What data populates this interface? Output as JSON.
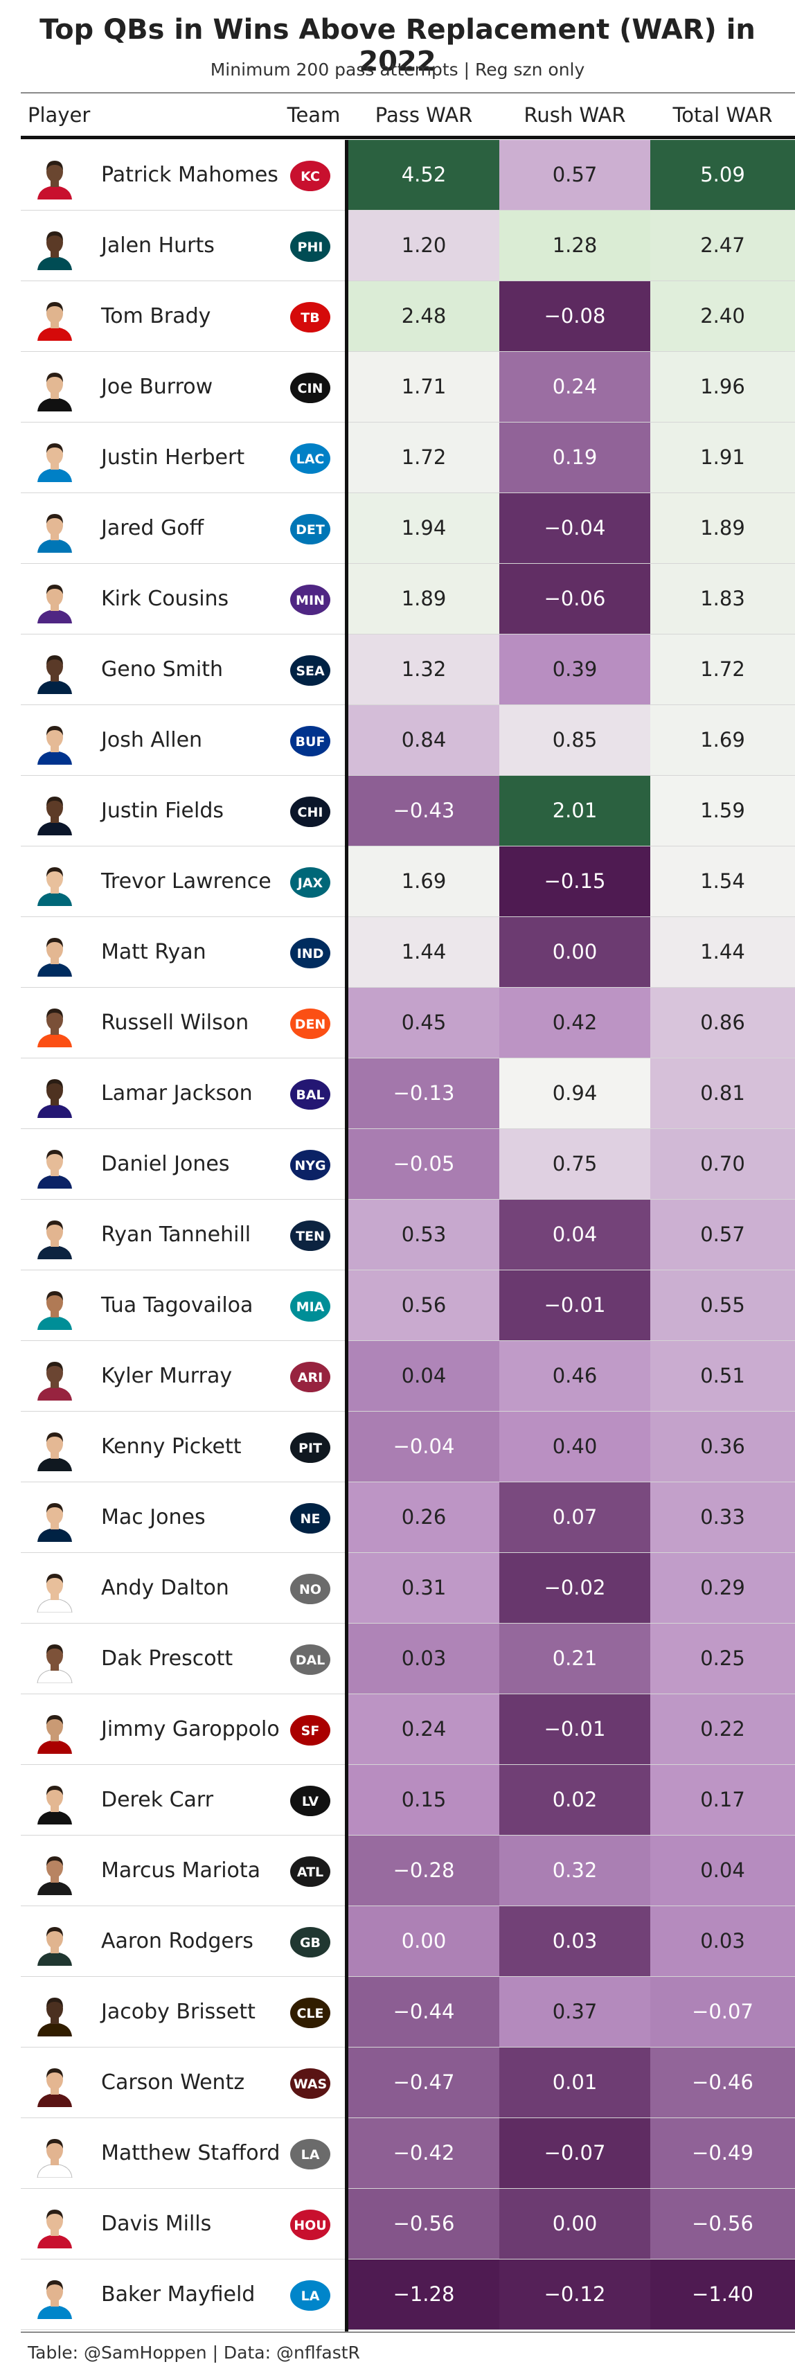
{
  "title": "Top QBs in Wins Above Replacement (WAR) in 2022",
  "subtitle": "Minimum 200 pass attempts | Reg szn only",
  "footer": "Table: @SamHoppen | Data: @nflfastR",
  "columns": {
    "player": "Player",
    "team": "Team",
    "pass": "Pass WAR",
    "rush": "Rush WAR",
    "total": "Total WAR"
  },
  "chart_data": {
    "type": "table",
    "title": "Top QBs in Wins Above Replacement (WAR) in 2022",
    "subtitle": "Minimum 200 pass attempts | Reg szn only",
    "columns": [
      "Player",
      "Team",
      "Pass WAR",
      "Rush WAR",
      "Total WAR"
    ],
    "colors": {
      "high": "#2b6140",
      "mid_high": "#cbe8c3",
      "neutral": "#f3f3f1",
      "mid_low": "#b98fc2",
      "low": "#4f1b52"
    },
    "rows": [
      {
        "player": "Patrick Mahomes",
        "team": "KC",
        "pass_display": "4.52",
        "rush_display": "0.57",
        "total_display": "5.09",
        "pass": 4.52,
        "rush": 0.57,
        "total": 5.09,
        "jersey": "#c8102e",
        "skin": "#6a4630"
      },
      {
        "player": "Jalen Hurts",
        "team": "PHI",
        "pass_display": "1.20",
        "rush_display": "1.28",
        "total_display": "2.47",
        "pass": 1.2,
        "rush": 1.28,
        "total": 2.47,
        "jersey": "#004c54",
        "skin": "#5b3a26"
      },
      {
        "player": "Tom Brady",
        "team": "TB",
        "pass_display": "2.48",
        "rush_display": "−0.08",
        "total_display": "2.40",
        "pass": 2.48,
        "rush": -0.08,
        "total": 2.4,
        "jersey": "#d50a0a",
        "skin": "#e0b48e"
      },
      {
        "player": "Joe Burrow",
        "team": "CIN",
        "pass_display": "1.71",
        "rush_display": "0.24",
        "total_display": "1.96",
        "pass": 1.71,
        "rush": 0.24,
        "total": 1.96,
        "jersey": "#111111",
        "skin": "#e3b893"
      },
      {
        "player": "Justin Herbert",
        "team": "LAC",
        "pass_display": "1.72",
        "rush_display": "0.19",
        "total_display": "1.91",
        "pass": 1.72,
        "rush": 0.19,
        "total": 1.91,
        "jersey": "#0080c6",
        "skin": "#e6bc98"
      },
      {
        "player": "Jared Goff",
        "team": "DET",
        "pass_display": "1.94",
        "rush_display": "−0.04",
        "total_display": "1.89",
        "pass": 1.94,
        "rush": -0.04,
        "total": 1.89,
        "jersey": "#0076b6",
        "skin": "#e4b894"
      },
      {
        "player": "Kirk Cousins",
        "team": "MIN",
        "pass_display": "1.89",
        "rush_display": "−0.06",
        "total_display": "1.83",
        "pass": 1.89,
        "rush": -0.06,
        "total": 1.83,
        "jersey": "#4f2683",
        "skin": "#e2b691"
      },
      {
        "player": "Geno Smith",
        "team": "SEA",
        "pass_display": "1.32",
        "rush_display": "0.39",
        "total_display": "1.72",
        "pass": 1.32,
        "rush": 0.39,
        "total": 1.72,
        "jersey": "#002244",
        "skin": "#5a3a28"
      },
      {
        "player": "Josh Allen",
        "team": "BUF",
        "pass_display": "0.84",
        "rush_display": "0.85",
        "total_display": "1.69",
        "pass": 0.84,
        "rush": 0.85,
        "total": 1.69,
        "jersey": "#00338d",
        "skin": "#e5ba96"
      },
      {
        "player": "Justin Fields",
        "team": "CHI",
        "pass_display": "−0.43",
        "rush_display": "2.01",
        "total_display": "1.59",
        "pass": -0.43,
        "rush": 2.01,
        "total": 1.59,
        "jersey": "#0b162a",
        "skin": "#5d3b27"
      },
      {
        "player": "Trevor Lawrence",
        "team": "JAX",
        "pass_display": "1.69",
        "rush_display": "−0.15",
        "total_display": "1.54",
        "pass": 1.69,
        "rush": -0.15,
        "total": 1.54,
        "jersey": "#006778",
        "skin": "#e8c09c"
      },
      {
        "player": "Matt Ryan",
        "team": "IND",
        "pass_display": "1.44",
        "rush_display": "0.00",
        "total_display": "1.44",
        "pass": 1.44,
        "rush": 0.0,
        "total": 1.44,
        "jersey": "#002c5f",
        "skin": "#e3b792"
      },
      {
        "player": "Russell Wilson",
        "team": "DEN",
        "pass_display": "0.45",
        "rush_display": "0.42",
        "total_display": "0.86",
        "pass": 0.45,
        "rush": 0.42,
        "total": 0.86,
        "jersey": "#fb4f14",
        "skin": "#7a5038"
      },
      {
        "player": "Lamar Jackson",
        "team": "BAL",
        "pass_display": "−0.13",
        "rush_display": "0.94",
        "total_display": "0.81",
        "pass": -0.13,
        "rush": 0.94,
        "total": 0.81,
        "jersey": "#241773",
        "skin": "#4e3221"
      },
      {
        "player": "Daniel Jones",
        "team": "NYG",
        "pass_display": "−0.05",
        "rush_display": "0.75",
        "total_display": "0.70",
        "pass": -0.05,
        "rush": 0.75,
        "total": 0.7,
        "jersey": "#0b2265",
        "skin": "#e6bc98"
      },
      {
        "player": "Ryan Tannehill",
        "team": "TEN",
        "pass_display": "0.53",
        "rush_display": "0.04",
        "total_display": "0.57",
        "pass": 0.53,
        "rush": 0.04,
        "total": 0.57,
        "jersey": "#0c2340",
        "skin": "#e2b590"
      },
      {
        "player": "Tua Tagovailoa",
        "team": "MIA",
        "pass_display": "0.56",
        "rush_display": "−0.01",
        "total_display": "0.55",
        "pass": 0.56,
        "rush": -0.01,
        "total": 0.55,
        "jersey": "#008e97",
        "skin": "#b07a55"
      },
      {
        "player": "Kyler Murray",
        "team": "ARI",
        "pass_display": "0.04",
        "rush_display": "0.46",
        "total_display": "0.51",
        "pass": 0.04,
        "rush": 0.46,
        "total": 0.51,
        "jersey": "#97233f",
        "skin": "#6b4532"
      },
      {
        "player": "Kenny Pickett",
        "team": "PIT",
        "pass_display": "−0.04",
        "rush_display": "0.40",
        "total_display": "0.36",
        "pass": -0.04,
        "rush": 0.4,
        "total": 0.36,
        "jersey": "#101820",
        "skin": "#e4b894"
      },
      {
        "player": "Mac Jones",
        "team": "NE",
        "pass_display": "0.26",
        "rush_display": "0.07",
        "total_display": "0.33",
        "pass": 0.26,
        "rush": 0.07,
        "total": 0.33,
        "jersey": "#002244",
        "skin": "#e6bb97"
      },
      {
        "player": "Andy Dalton",
        "team": "NO",
        "pass_display": "0.31",
        "rush_display": "−0.02",
        "total_display": "0.29",
        "pass": 0.31,
        "rush": -0.02,
        "total": 0.29,
        "jersey": "#ffffff",
        "skin": "#e8bf9b"
      },
      {
        "player": "Dak Prescott",
        "team": "DAL",
        "pass_display": "0.03",
        "rush_display": "0.21",
        "total_display": "0.25",
        "pass": 0.03,
        "rush": 0.21,
        "total": 0.25,
        "jersey": "#ffffff",
        "skin": "#7d5239"
      },
      {
        "player": "Jimmy Garoppolo",
        "team": "SF",
        "pass_display": "0.24",
        "rush_display": "−0.01",
        "total_display": "0.22",
        "pass": 0.24,
        "rush": -0.01,
        "total": 0.22,
        "jersey": "#aa0000",
        "skin": "#c99a74"
      },
      {
        "player": "Derek Carr",
        "team": "LV",
        "pass_display": "0.15",
        "rush_display": "0.02",
        "total_display": "0.17",
        "pass": 0.15,
        "rush": 0.02,
        "total": 0.17,
        "jersey": "#111111",
        "skin": "#e3b792"
      },
      {
        "player": "Marcus Mariota",
        "team": "ATL",
        "pass_display": "−0.28",
        "rush_display": "0.32",
        "total_display": "0.04",
        "pass": -0.28,
        "rush": 0.32,
        "total": 0.04,
        "jersey": "#1a1a1a",
        "skin": "#b88462"
      },
      {
        "player": "Aaron Rodgers",
        "team": "GB",
        "pass_display": "0.00",
        "rush_display": "0.03",
        "total_display": "0.03",
        "pass": 0.0,
        "rush": 0.03,
        "total": 0.03,
        "jersey": "#203731",
        "skin": "#e0b48f"
      },
      {
        "player": "Jacoby Brissett",
        "team": "CLE",
        "pass_display": "−0.44",
        "rush_display": "0.37",
        "total_display": "−0.07",
        "pass": -0.44,
        "rush": 0.37,
        "total": -0.07,
        "jersey": "#311d00",
        "skin": "#4b3020"
      },
      {
        "player": "Carson Wentz",
        "team": "WAS",
        "pass_display": "−0.47",
        "rush_display": "0.01",
        "total_display": "−0.46",
        "pass": -0.47,
        "rush": 0.01,
        "total": -0.46,
        "jersey": "#5a1414",
        "skin": "#e4b691"
      },
      {
        "player": "Matthew Stafford",
        "team": "LA",
        "pass_display": "−0.42",
        "rush_display": "−0.07",
        "total_display": "−0.49",
        "pass": -0.42,
        "rush": -0.07,
        "total": -0.49,
        "jersey": "#ffffff",
        "skin": "#e2b490"
      },
      {
        "player": "Davis Mills",
        "team": "HOU",
        "pass_display": "−0.56",
        "rush_display": "0.00",
        "total_display": "−0.56",
        "pass": -0.56,
        "rush": 0.0,
        "total": -0.56,
        "jersey": "#c8102e",
        "skin": "#e6bb97"
      },
      {
        "player": "Baker Mayfield",
        "team": "LA",
        "pass_display": "−1.28",
        "rush_display": "−0.12",
        "total_display": "−1.40",
        "pass": -1.28,
        "rush": -0.12,
        "total": -1.4,
        "jersey": "#0085ca",
        "skin": "#e2b48f"
      }
    ]
  }
}
